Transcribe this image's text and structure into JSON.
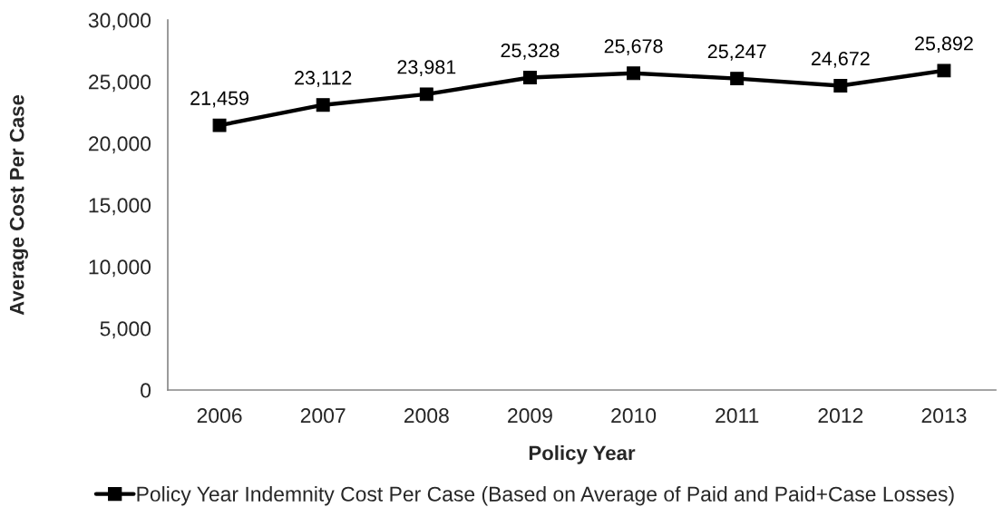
{
  "chart_data": {
    "type": "line",
    "xlabel": "Policy Year",
    "ylabel": "Average Cost Per Case",
    "categories": [
      "2006",
      "2007",
      "2008",
      "2009",
      "2010",
      "2011",
      "2012",
      "2013"
    ],
    "series": [
      {
        "name": "Policy Year Indemnity Cost Per Case (Based on Average of Paid and Paid+Case Losses)",
        "color": "#000000",
        "values": [
          21459,
          23112,
          23981,
          25328,
          25678,
          25247,
          24672,
          25892
        ],
        "value_labels": [
          "21,459",
          "23,112",
          "23,981",
          "25,328",
          "25,678",
          "25,247",
          "24,672",
          "25,892"
        ]
      }
    ],
    "ylim": [
      0,
      30000
    ],
    "yticks": [
      0,
      {
        "value": 5000,
        "label": "5,000"
      },
      {
        "value": 10000,
        "label": "10,000"
      },
      {
        "value": 15000,
        "label": "15,000"
      },
      {
        "value": 20000,
        "label": "20,000"
      },
      {
        "value": 25000,
        "label": "25,000"
      },
      {
        "value": 30000,
        "label": "30,000"
      }
    ],
    "marker": "square",
    "line_style": "solid",
    "legend": "bottom"
  }
}
